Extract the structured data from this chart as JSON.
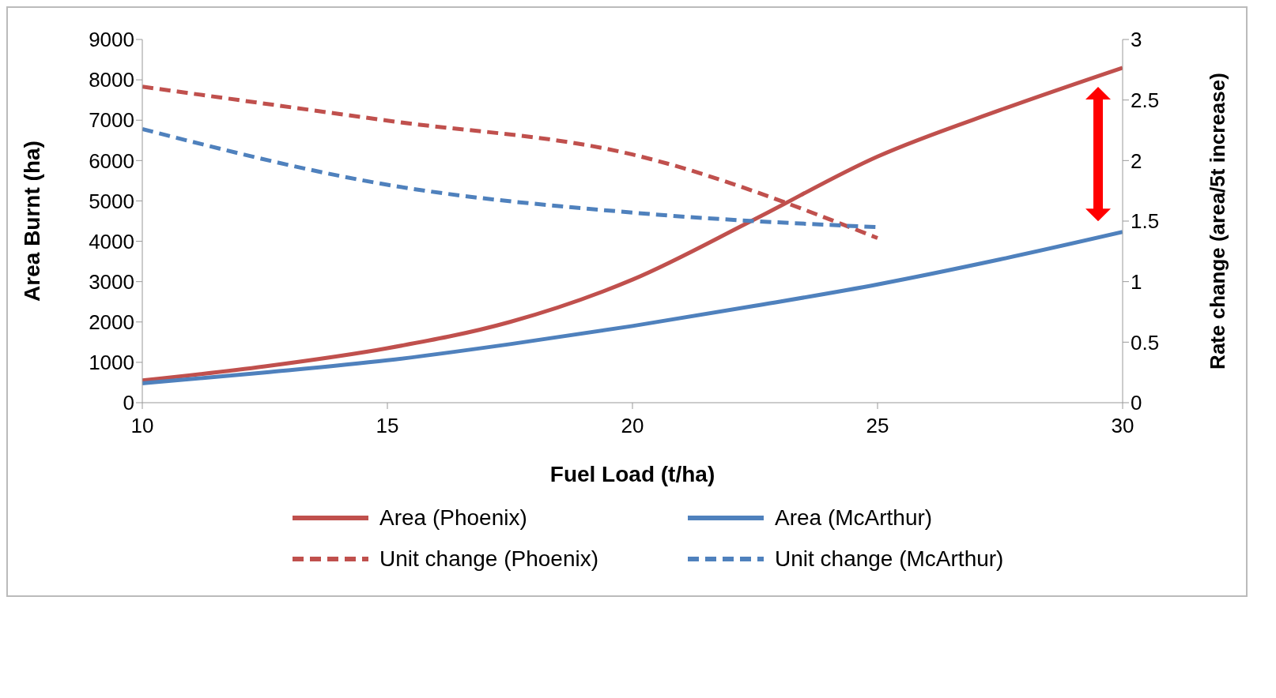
{
  "chart_data": {
    "type": "line",
    "xlabel": "Fuel Load (t/ha)",
    "ylabel": "Area Burnt (ha)",
    "y2label": "Rate change  (area/5t increase)",
    "xlim": [
      10,
      30
    ],
    "xticks": [
      10,
      15,
      20,
      25,
      30
    ],
    "ylim": [
      0,
      9000
    ],
    "yticks": [
      0,
      1000,
      2000,
      3000,
      4000,
      5000,
      6000,
      7000,
      8000,
      9000
    ],
    "y2lim": [
      0,
      3
    ],
    "y2ticks": [
      0,
      0.5,
      1,
      1.5,
      2,
      2.5,
      3
    ],
    "grid": false,
    "legend": "bottom",
    "marker": "none",
    "series": [
      {
        "name": "Area (Phoenix)",
        "color": "#c0504d",
        "line_style": "solid",
        "x": [
          10,
          12.5,
          15,
          17.5,
          20,
          22.5,
          25,
          27.5,
          30
        ],
        "values": [
          550,
          900,
          1350,
          2000,
          3050,
          4550,
          6100,
          7250,
          8300
        ]
      },
      {
        "name": "Area (McArthur)",
        "color": "#4f81bd",
        "line_style": "solid",
        "x": [
          10,
          12.5,
          15,
          17.5,
          20,
          22.5,
          25,
          27.5,
          30
        ],
        "values": [
          480,
          750,
          1050,
          1450,
          1900,
          2400,
          2930,
          3550,
          4230
        ]
      },
      {
        "name": "Unit change (Phoenix)",
        "color": "#c0504d",
        "line_style": "dashed",
        "axis": "y2",
        "x": [
          10,
          15,
          20,
          25
        ],
        "values": [
          2.61,
          2.33,
          2.05,
          1.36
        ]
      },
      {
        "name": "Unit change (McArthur)",
        "color": "#4f81bd",
        "line_style": "dashed",
        "axis": "y2",
        "x": [
          10,
          15,
          20,
          25
        ],
        "values": [
          2.26,
          1.8,
          1.57,
          1.45
        ]
      }
    ]
  }
}
